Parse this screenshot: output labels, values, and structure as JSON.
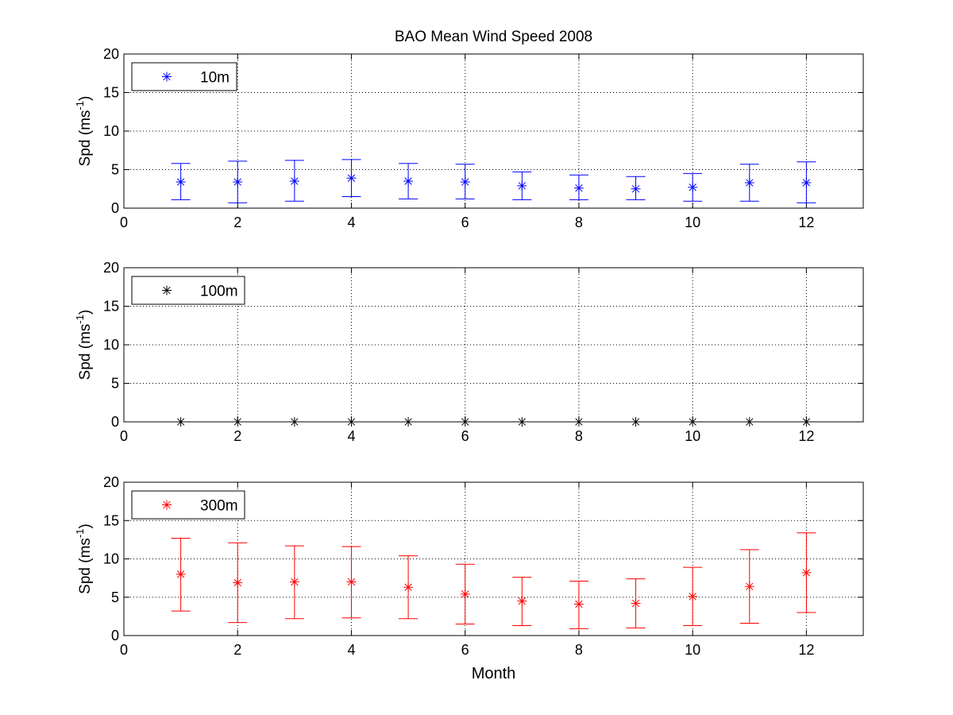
{
  "chart_data": [
    {
      "type": "scatter",
      "title": "BAO Mean Wind Speed  2008",
      "xlabel": "",
      "ylabel_main": "Spd (ms",
      "ylabel_sup": "-1",
      "ylabel_close": ")",
      "xlim": [
        0,
        13
      ],
      "ylim": [
        0,
        20
      ],
      "xticks": [
        "0",
        "2",
        "4",
        "6",
        "8",
        "10",
        "12"
      ],
      "yticks": [
        "0",
        "5",
        "10",
        "15",
        "20"
      ],
      "grid": true,
      "legend_position": "top-left",
      "series": [
        {
          "name": "10m",
          "color": "#0000ff",
          "marker": "asterisk",
          "x": [
            1,
            2,
            3,
            4,
            5,
            6,
            7,
            8,
            9,
            10,
            11,
            12
          ],
          "y": [
            3.4,
            3.4,
            3.5,
            3.9,
            3.5,
            3.4,
            2.9,
            2.6,
            2.5,
            2.7,
            3.3,
            3.3
          ],
          "error_low": [
            1.1,
            0.7,
            0.9,
            1.5,
            1.2,
            1.2,
            1.1,
            1.1,
            1.1,
            0.9,
            0.9,
            0.7
          ],
          "error_high": [
            5.8,
            6.1,
            6.2,
            6.3,
            5.8,
            5.7,
            4.7,
            4.3,
            4.1,
            4.5,
            5.7,
            6.0
          ]
        }
      ]
    },
    {
      "type": "scatter",
      "title": "",
      "xlabel": "",
      "ylabel_main": "Spd (ms",
      "ylabel_sup": "-1",
      "ylabel_close": ")",
      "xlim": [
        0,
        13
      ],
      "ylim": [
        0,
        20
      ],
      "xticks": [
        "0",
        "2",
        "4",
        "6",
        "8",
        "10",
        "12"
      ],
      "yticks": [
        "0",
        "5",
        "10",
        "15",
        "20"
      ],
      "grid": true,
      "legend_position": "top-left",
      "series": [
        {
          "name": "100m",
          "color": "#000000",
          "marker": "asterisk",
          "x": [
            1,
            2,
            3,
            4,
            5,
            6,
            7,
            8,
            9,
            10,
            11,
            12
          ],
          "y": [
            0,
            0,
            0,
            0,
            0,
            0,
            0,
            0,
            0,
            0,
            0,
            0
          ],
          "error_low": [],
          "error_high": []
        }
      ]
    },
    {
      "type": "scatter",
      "title": "",
      "xlabel": "Month",
      "ylabel_main": "Spd (ms",
      "ylabel_sup": "-1",
      "ylabel_close": ")",
      "xlim": [
        0,
        13
      ],
      "ylim": [
        0,
        20
      ],
      "xticks": [
        "0",
        "2",
        "4",
        "6",
        "8",
        "10",
        "12"
      ],
      "yticks": [
        "0",
        "5",
        "10",
        "15",
        "20"
      ],
      "grid": true,
      "legend_position": "top-left",
      "series": [
        {
          "name": "300m",
          "color": "#ff0000",
          "marker": "asterisk",
          "x": [
            1,
            2,
            3,
            4,
            5,
            6,
            7,
            8,
            9,
            10,
            11,
            12
          ],
          "y": [
            8.0,
            6.9,
            7.0,
            7.0,
            6.3,
            5.4,
            4.5,
            4.1,
            4.2,
            5.1,
            6.4,
            8.2
          ],
          "error_low": [
            3.2,
            1.7,
            2.2,
            2.3,
            2.2,
            1.5,
            1.3,
            0.9,
            1.0,
            1.3,
            1.6,
            3.0
          ],
          "error_high": [
            12.7,
            12.1,
            11.7,
            11.6,
            10.4,
            9.3,
            7.6,
            7.1,
            7.4,
            8.9,
            11.2,
            13.4
          ]
        }
      ]
    }
  ]
}
